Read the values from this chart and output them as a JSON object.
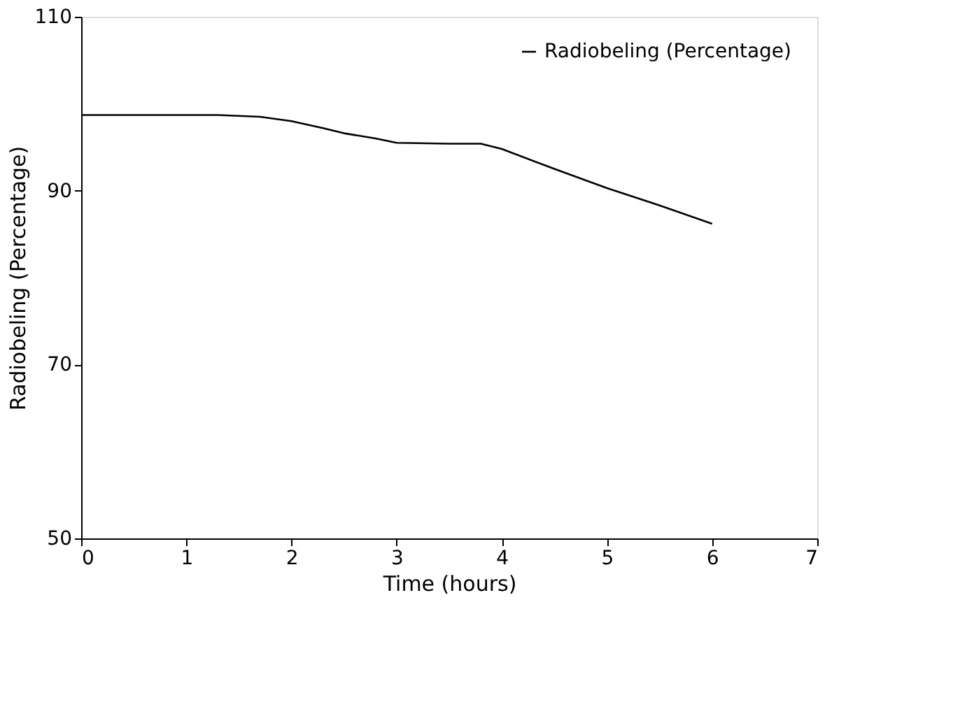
{
  "chart_data": {
    "type": "line",
    "xlabel": "Time (hours)",
    "ylabel": "Radiobeling (Percentage)",
    "x": [
      0,
      0.5,
      1,
      1.3,
      1.7,
      2,
      2.3,
      2.5,
      2.8,
      3,
      3.5,
      3.8,
      4,
      4.5,
      5,
      5.5,
      6
    ],
    "series": [
      {
        "name": "Radiobeling (Percentage)",
        "color": "#000000",
        "values": [
          98.7,
          98.7,
          98.7,
          98.7,
          98.5,
          98.0,
          97.2,
          96.6,
          96.0,
          95.5,
          95.4,
          95.4,
          94.8,
          92.5,
          90.3,
          88.3,
          86.2
        ]
      }
    ],
    "xlim": [
      0,
      7
    ],
    "xticks": [
      0,
      1,
      2,
      3,
      4,
      5,
      6,
      7
    ],
    "ylim": [
      50,
      110
    ],
    "yticks": [
      50,
      70,
      90,
      110
    ],
    "grid": false,
    "legend": "top right",
    "marker": "none",
    "line_style": "solid"
  }
}
